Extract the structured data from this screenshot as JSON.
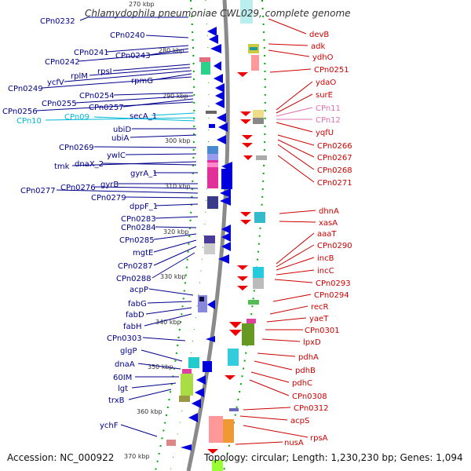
{
  "title": "Chlamydophila pneumoniae CWL029, complete genome",
  "accession": "Accession: NC_000922",
  "topology": "Topology: circular; Length: 1,230,230 bp; Genes: 1,094",
  "colors": {
    "forward": "#0000dd",
    "reverse": "#ee0000",
    "ruler": "#00aa00",
    "backbone": "#888888"
  },
  "scale_labels": [
    "270 kbp",
    "280 kbp",
    "290 kbp",
    "300 kbp",
    "310 kbp",
    "320 kbp",
    "330 kbp",
    "340 kbp",
    "350 kbp",
    "360 kbp",
    "370 kbp"
  ],
  "left_genes": [
    "CPn0232",
    "CPn0240",
    "CPn0241",
    "CPn0243",
    "CPn0242",
    "rpsI",
    "rplM",
    "ycfV",
    "rpmG",
    "CPn0249",
    "CPn0254",
    "CPn0255",
    "CPn0257",
    "CPn0256",
    "CPn09",
    "secA_1",
    "CPn10",
    "ubiD",
    "ubiA",
    "CPn0269",
    "ywlC",
    "tmk",
    "dnaX_2",
    "gyrA_1",
    "gyrB",
    "CPn0276",
    "CPn0277",
    "CPn0279",
    "dppF_1",
    "CPn0283",
    "CPn0284",
    "CPn0285",
    "mgtE",
    "CPn0287",
    "CPn0288",
    "acpP",
    "fabG",
    "fabD",
    "fabH",
    "CPn0303",
    "glgP",
    "dnaA",
    "60IM",
    "lgt",
    "trxB",
    "ychF"
  ],
  "right_genes": [
    "devB",
    "adk",
    "ydhO",
    "CPn0251",
    "ydaO",
    "surE",
    "CPn11",
    "CPn12",
    "yqfU",
    "CPn0266",
    "CPn0267",
    "CPn0268",
    "CPn0271",
    "dhnA",
    "xasA",
    "aaaT",
    "CPn0290",
    "incB",
    "incC",
    "CPn0293",
    "CPn0294",
    "recR",
    "yaeT",
    "CPn0301",
    "lpxD",
    "pdhA",
    "pdhB",
    "pdhC",
    "CPn0308",
    "CPn0312",
    "acpS",
    "rpsA",
    "nusA"
  ]
}
